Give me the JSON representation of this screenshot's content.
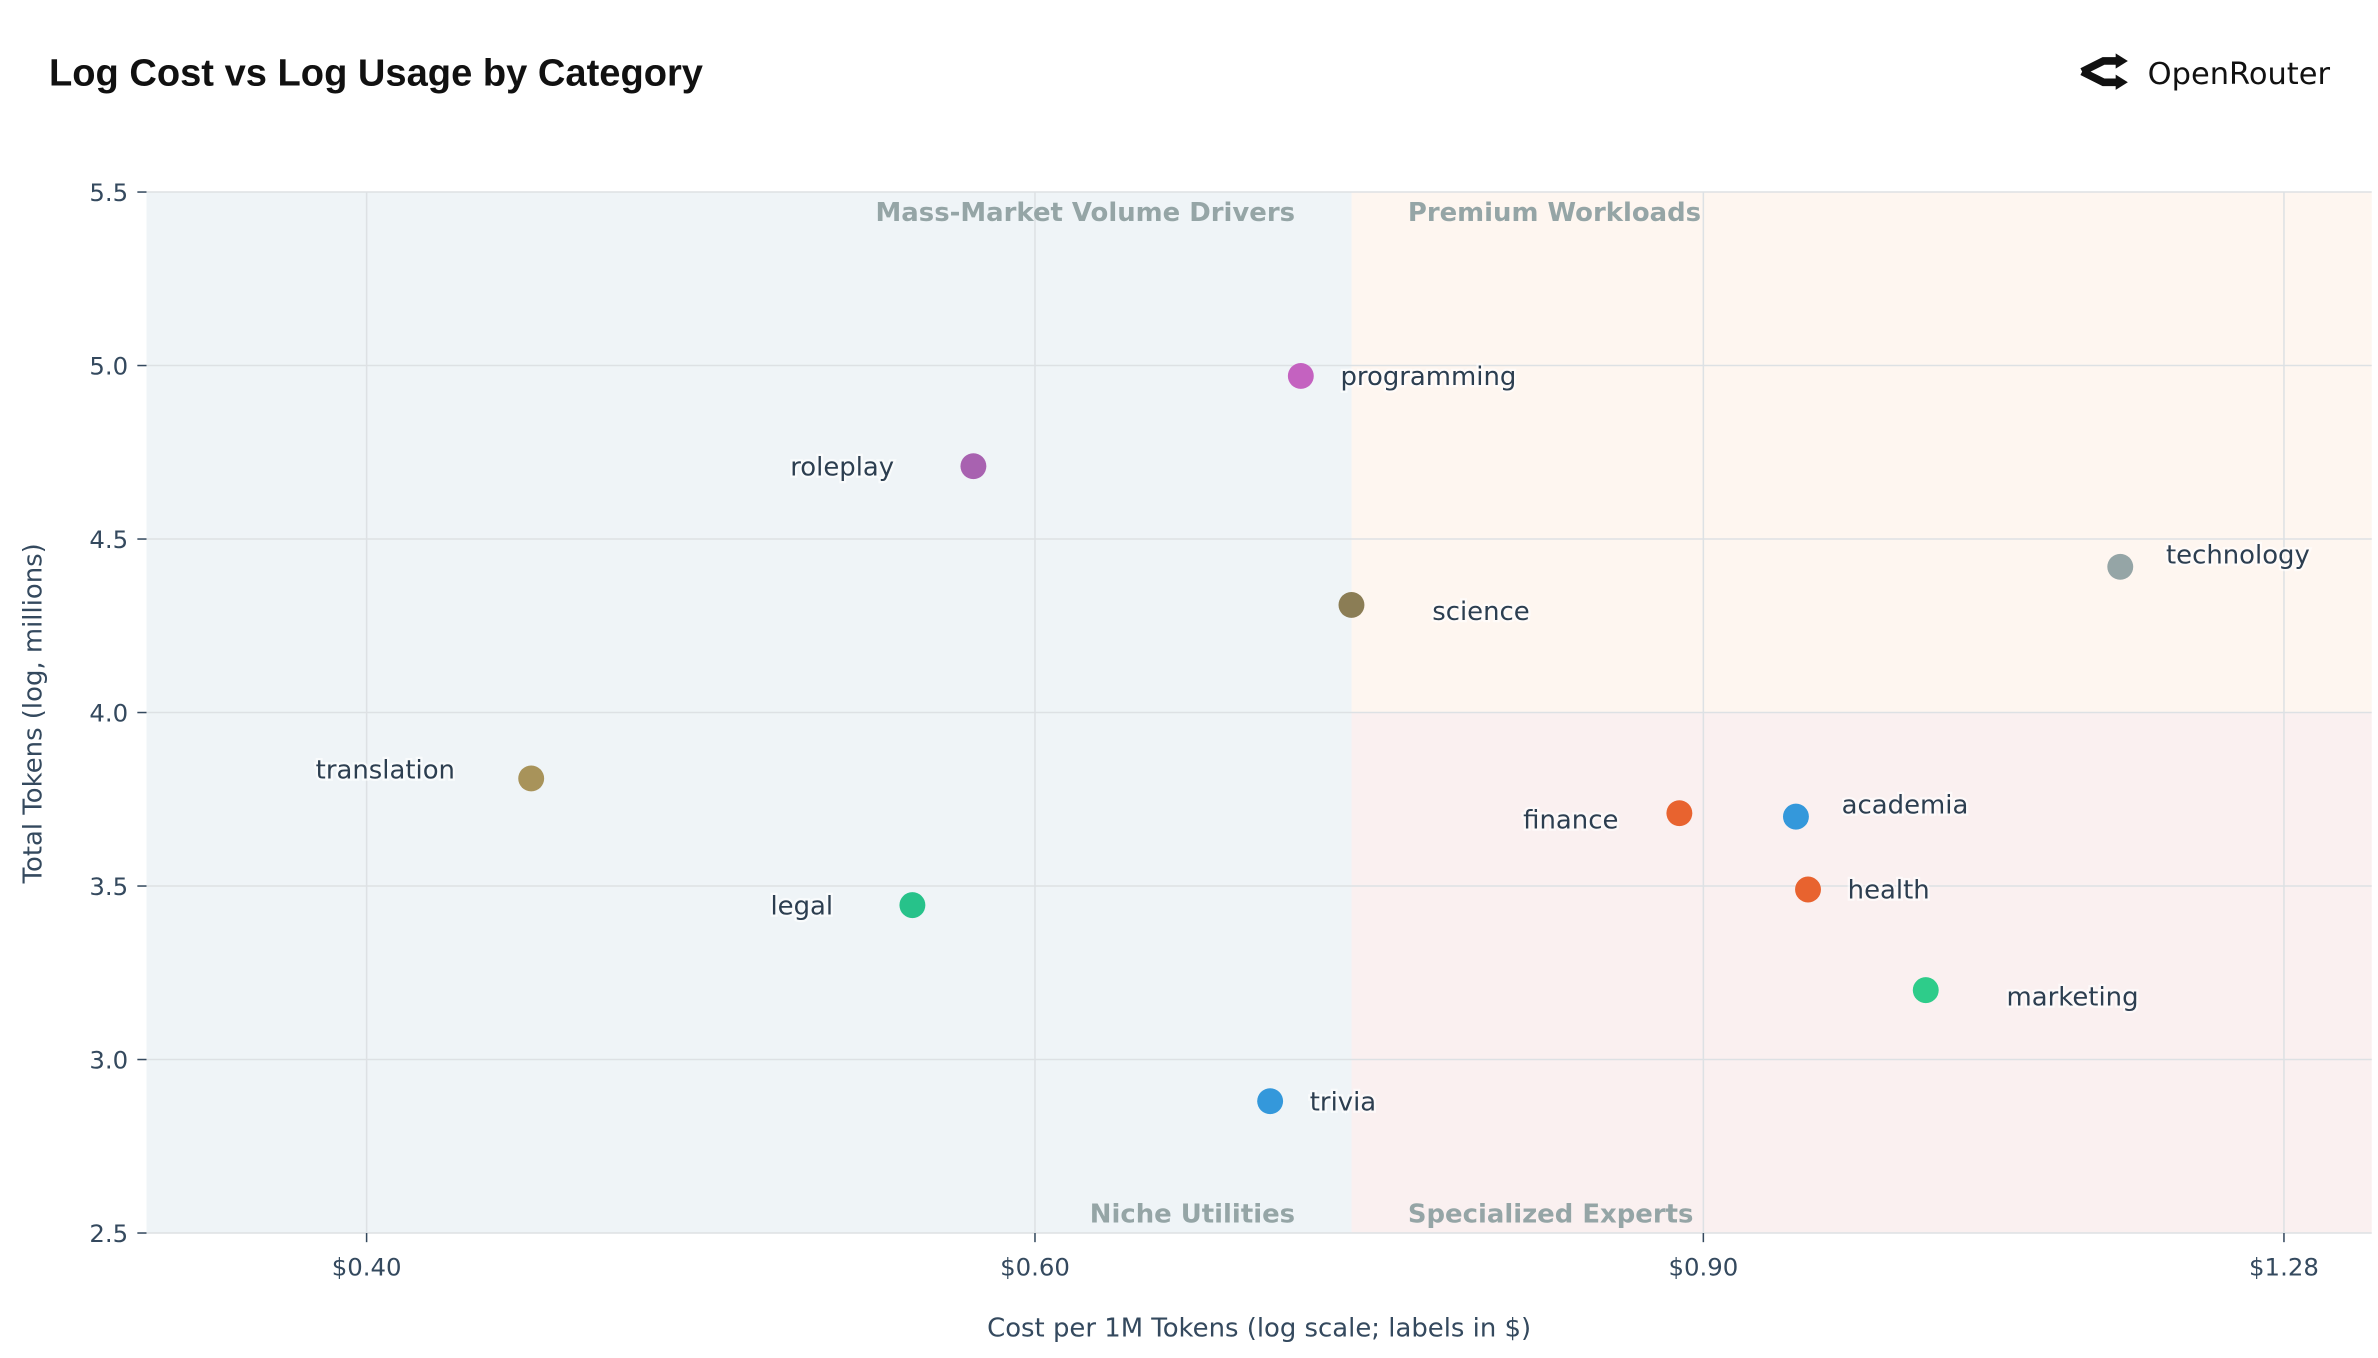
{
  "header": {
    "title": "Log Cost vs Log Usage by Category",
    "brand": "OpenRouter",
    "brand_icon": "openrouter-logo-icon"
  },
  "chart_data": {
    "type": "scatter",
    "title": "Log Cost vs Log Usage by Category",
    "xlabel": "Cost per 1M Tokens (log scale; labels in $)",
    "ylabel": "Total Tokens (log, millions)",
    "x_scale": "log",
    "xlim": [
      0.35,
      1.35
    ],
    "ylim": [
      2.5,
      5.5
    ],
    "x_ticks": [
      {
        "value": 0.4,
        "label": "$0.40"
      },
      {
        "value": 0.6,
        "label": "$0.60"
      },
      {
        "value": 0.9,
        "label": "$0.90"
      },
      {
        "value": 1.28,
        "label": "$1.28"
      }
    ],
    "y_ticks": [
      "2.5",
      "3.0",
      "3.5",
      "4.0",
      "4.5",
      "5.0",
      "5.5"
    ],
    "grid": true,
    "quadrant_split": {
      "x": 0.727,
      "y": 4.0
    },
    "quadrants": {
      "top_left": {
        "label": "Mass-Market Volume Drivers",
        "color": "#eff4f7"
      },
      "top_right": {
        "label": "Premium Workloads",
        "color": "#fef6f0"
      },
      "bottom_left": {
        "label": "Niche Utilities",
        "color": "#eff4f7"
      },
      "bottom_right": {
        "label": "Specialized Experts",
        "color": "#faf0f0"
      }
    },
    "points": [
      {
        "name": "programming",
        "x": 0.705,
        "y": 4.97,
        "color": "#c462c0",
        "label_side": "right"
      },
      {
        "name": "roleplay",
        "x": 0.578,
        "y": 4.71,
        "color": "#a862b0",
        "label_side": "left"
      },
      {
        "name": "science",
        "x": 0.727,
        "y": 4.31,
        "color": "#8b7d55",
        "label_side": "right-far"
      },
      {
        "name": "technology",
        "x": 1.159,
        "y": 4.42,
        "color": "#95a5a6",
        "label_side": "right-up"
      },
      {
        "name": "translation",
        "x": 0.442,
        "y": 3.81,
        "color": "#a8935a",
        "label_side": "left-up"
      },
      {
        "name": "legal",
        "x": 0.557,
        "y": 3.445,
        "color": "#27c28a",
        "label_side": "left"
      },
      {
        "name": "trivia",
        "x": 0.692,
        "y": 2.88,
        "color": "#3498db",
        "label_side": "right"
      },
      {
        "name": "finance",
        "x": 0.887,
        "y": 3.71,
        "color": "#e8632f",
        "label_side": "left-far"
      },
      {
        "name": "academia",
        "x": 0.952,
        "y": 3.7,
        "color": "#3498db",
        "label_side": "right-up"
      },
      {
        "name": "health",
        "x": 0.959,
        "y": 3.49,
        "color": "#e8632f",
        "label_side": "right"
      },
      {
        "name": "marketing",
        "x": 1.03,
        "y": 3.2,
        "color": "#2ecc8a",
        "label_side": "right-far"
      }
    ]
  }
}
